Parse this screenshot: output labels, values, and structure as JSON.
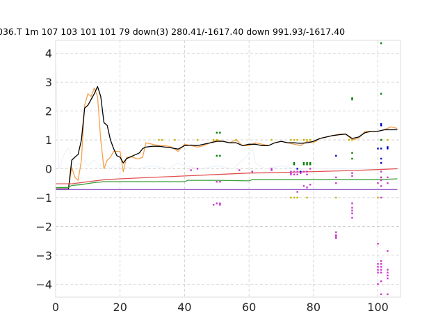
{
  "chart_data": {
    "type": "line",
    "title": "036.T 1m 107 103 101 101 79  down(3) 280.41/-1617.40 down 991.93/-1617.40",
    "xlabel": "",
    "ylabel": "",
    "xlim": [
      0,
      107
    ],
    "ylim": [
      -4.45,
      4.45
    ],
    "xticks": [
      0,
      20,
      40,
      60,
      80,
      100
    ],
    "yticks": [
      4,
      3,
      2,
      1,
      0,
      -1,
      -2,
      -3,
      -4
    ],
    "xtick_labels": [
      "0",
      "20",
      "40",
      "60",
      "80",
      "100"
    ],
    "ytick_labels": [
      "4",
      "3",
      "2",
      "1",
      "0",
      "−1",
      "−2",
      "−3",
      "−4"
    ],
    "grid": true,
    "series": [
      {
        "color": "#e8f0f8",
        "x": [
          0,
          1,
          2,
          3,
          4,
          5,
          6,
          7,
          8,
          9,
          10,
          11,
          12,
          13,
          14,
          15,
          16,
          17,
          18,
          19,
          20,
          25,
          30,
          35,
          38,
          40,
          45,
          50,
          55,
          60,
          61,
          62,
          65,
          70,
          75,
          80,
          90,
          100,
          105
        ],
        "y": [
          3.8,
          0.0,
          0.3,
          0.6,
          0.7,
          0.4,
          0.1,
          0.2,
          0.1,
          0.3,
          0.1,
          0.2,
          0.3,
          0.2,
          0.1,
          0.2,
          0.1,
          0.0,
          0.1,
          0.0,
          0.1,
          0.0,
          0.1,
          0.0,
          0.2,
          0.1,
          0.0,
          0.1,
          0.0,
          0.5,
          0.7,
          0.2,
          0.0,
          0.1,
          0.0,
          0.0,
          0.0,
          0.0,
          0.0
        ]
      },
      {
        "color": "#f5a04a",
        "x": [
          0,
          1,
          2,
          3,
          4,
          5,
          6,
          7,
          8,
          9,
          10,
          11,
          12,
          13,
          14,
          15,
          16,
          17,
          18,
          19,
          20,
          21,
          22,
          23,
          24,
          25,
          26,
          27,
          28,
          30,
          32,
          34,
          36,
          38,
          40,
          42,
          44,
          46,
          48,
          50,
          52,
          54,
          56,
          58,
          60,
          62,
          64,
          66,
          68,
          70,
          72,
          74,
          76,
          78,
          80,
          82,
          84,
          86,
          88,
          90,
          92,
          94,
          96,
          98,
          100,
          102,
          104,
          106
        ],
        "y": [
          -0.7,
          -0.7,
          -0.7,
          -0.7,
          -0.7,
          0.05,
          -0.3,
          -0.4,
          0.3,
          2.2,
          2.6,
          2.5,
          2.8,
          2.5,
          1.0,
          0.0,
          0.3,
          0.4,
          0.6,
          0.6,
          0.6,
          -0.1,
          0.4,
          0.4,
          0.4,
          0.35,
          0.35,
          0.4,
          0.9,
          0.85,
          0.8,
          0.8,
          0.75,
          0.6,
          0.85,
          0.8,
          0.75,
          0.8,
          0.9,
          1.0,
          0.95,
          0.9,
          1.0,
          0.8,
          0.8,
          0.9,
          0.85,
          0.8,
          0.9,
          0.95,
          0.9,
          0.85,
          0.8,
          0.95,
          0.9,
          1.05,
          1.1,
          1.15,
          1.2,
          1.2,
          1.0,
          1.05,
          1.3,
          1.3,
          1.3,
          1.35,
          1.45,
          1.4
        ]
      },
      {
        "color": "#000000",
        "x": [
          0,
          1,
          2,
          3,
          4,
          5,
          6,
          7,
          8,
          9,
          10,
          11,
          12,
          13,
          14,
          15,
          16,
          17,
          18,
          19,
          20,
          21,
          22,
          23,
          24,
          25,
          26,
          27,
          28,
          30,
          32,
          34,
          36,
          38,
          40,
          42,
          44,
          46,
          48,
          50,
          52,
          54,
          56,
          58,
          60,
          62,
          64,
          66,
          68,
          70,
          72,
          74,
          76,
          78,
          80,
          82,
          84,
          86,
          88,
          90,
          92,
          94,
          96,
          98,
          100,
          102,
          104,
          106
        ],
        "y": [
          -0.7,
          -0.7,
          -0.7,
          -0.7,
          -0.7,
          0.3,
          0.4,
          0.5,
          1.0,
          2.1,
          2.2,
          2.4,
          2.6,
          2.85,
          2.5,
          1.6,
          1.5,
          1.0,
          0.7,
          0.45,
          0.4,
          0.2,
          0.35,
          0.4,
          0.45,
          0.5,
          0.55,
          0.7,
          0.75,
          0.78,
          0.78,
          0.75,
          0.72,
          0.68,
          0.8,
          0.82,
          0.8,
          0.85,
          0.9,
          0.95,
          0.95,
          0.9,
          0.9,
          0.8,
          0.85,
          0.85,
          0.8,
          0.8,
          0.9,
          0.95,
          0.9,
          0.9,
          0.88,
          0.9,
          0.95,
          1.05,
          1.1,
          1.15,
          1.18,
          1.2,
          1.05,
          1.1,
          1.25,
          1.3,
          1.3,
          1.35,
          1.35,
          1.35
        ]
      },
      {
        "color": "#e05050",
        "x": [
          0,
          5,
          10,
          15,
          20,
          30,
          40,
          50,
          60,
          70,
          80,
          90,
          100,
          106
        ],
        "y": [
          -0.52,
          -0.52,
          -0.45,
          -0.38,
          -0.35,
          -0.3,
          -0.25,
          -0.2,
          -0.15,
          -0.13,
          -0.1,
          -0.07,
          -0.03,
          0.0
        ]
      },
      {
        "color": "#3aa03a",
        "x": [
          0,
          4,
          5,
          8,
          12,
          15,
          20,
          30,
          40,
          41,
          50,
          60,
          61,
          70,
          80,
          90,
          100,
          106
        ],
        "y": [
          -0.65,
          -0.65,
          -0.58,
          -0.55,
          -0.48,
          -0.45,
          -0.45,
          -0.45,
          -0.45,
          -0.4,
          -0.4,
          -0.42,
          -0.38,
          -0.38,
          -0.38,
          -0.38,
          -0.38,
          -0.35
        ]
      },
      {
        "color": "#9a5fd0",
        "x": [
          0,
          106
        ],
        "y": [
          -0.72,
          -0.72
        ]
      }
    ],
    "scatter_groups": [
      {
        "color": "#c8b400",
        "x": [
          32,
          33,
          37,
          44,
          49,
          50,
          56,
          67,
          73,
          73,
          74,
          74,
          75,
          75,
          77,
          77,
          78,
          78,
          79,
          79,
          87,
          91,
          92,
          100,
          101,
          103
        ],
        "y": [
          1.0,
          1.0,
          1.0,
          1.0,
          1.0,
          1.0,
          1.0,
          1.0,
          1.0,
          -1.0,
          1.0,
          -1.0,
          1.0,
          -1.0,
          1.0,
          1.0,
          1.0,
          -1.0,
          1.0,
          1.0,
          -1.0,
          1.0,
          1.0,
          -1.0,
          1.0,
          1.0
        ]
      },
      {
        "color": "#008000",
        "x": [
          50,
          51,
          50,
          51,
          74,
          74,
          77,
          77,
          78,
          78,
          79,
          79,
          92,
          92,
          92,
          92,
          101,
          101,
          101,
          101
        ],
        "y": [
          1.25,
          1.25,
          0.45,
          0.45,
          0.2,
          0.15,
          0.2,
          0.15,
          0.2,
          0.15,
          0.2,
          0.15,
          2.45,
          2.4,
          0.55,
          0.35,
          4.35,
          2.6,
          1.0,
          -0.3
        ]
      },
      {
        "color": "#0000c8",
        "x": [
          75,
          76,
          87,
          100,
          101,
          101,
          101,
          101,
          101,
          103,
          103
        ],
        "y": [
          0.0,
          -0.1,
          0.45,
          0.7,
          0.7,
          1.5,
          1.55,
          0.35,
          0.2,
          0.75,
          0.7
        ]
      },
      {
        "color": "#cc33cc",
        "x": [
          42,
          44,
          49,
          50,
          50,
          51,
          51,
          51,
          57,
          61,
          67,
          67,
          73,
          73,
          73,
          74,
          74,
          75,
          75,
          75,
          76,
          77,
          77,
          78,
          78,
          78,
          79,
          79,
          87,
          87,
          87,
          87,
          87,
          87,
          92,
          92,
          92,
          92,
          92,
          92,
          92,
          100,
          100,
          100,
          100,
          100,
          100,
          100,
          101,
          101,
          101,
          101,
          101,
          101,
          101,
          101,
          101,
          101,
          101,
          101,
          103,
          103,
          103,
          103,
          103,
          103,
          103,
          103
        ],
        "y": [
          -0.05,
          0.0,
          -1.25,
          -0.45,
          -1.2,
          -0.45,
          -1.2,
          -1.25,
          -0.05,
          -0.1,
          -0.05,
          0.0,
          -0.1,
          -0.15,
          -0.2,
          -0.1,
          -0.2,
          -0.1,
          -0.2,
          -0.8,
          -0.15,
          -0.6,
          -0.1,
          -0.65,
          -0.1,
          -0.2,
          -0.55,
          0.0,
          -0.3,
          -0.5,
          -2.2,
          -2.3,
          -2.35,
          -2.4,
          -0.15,
          -0.25,
          -1.2,
          -1.35,
          -1.45,
          -1.55,
          -1.7,
          -2.6,
          -3.3,
          -3.4,
          -3.5,
          -3.6,
          -4.0,
          -0.5,
          -0.3,
          -0.4,
          -0.6,
          -1.0,
          -3.2,
          -3.3,
          -3.4,
          -3.5,
          -3.6,
          -3.9,
          -4.35,
          -0.1,
          -0.3,
          -0.5,
          -2.85,
          -3.5,
          -3.6,
          -3.7,
          -3.8,
          -4.35
        ]
      }
    ]
  }
}
